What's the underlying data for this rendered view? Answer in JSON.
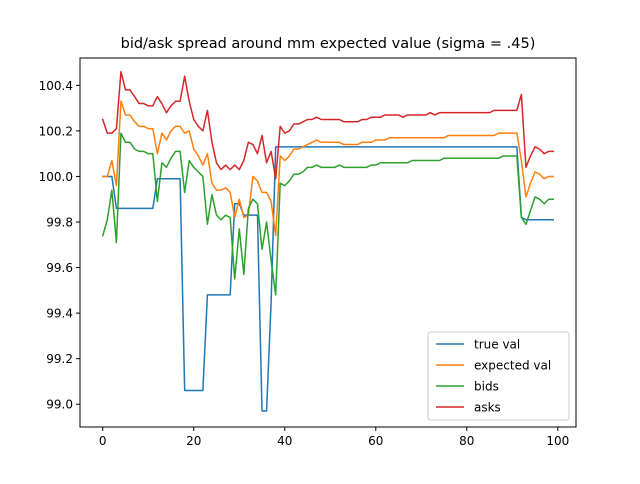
{
  "chart_data": {
    "type": "line",
    "title": "bid/ask spread around mm expected value (sigma = .45)",
    "xlabel": "",
    "ylabel": "",
    "xlim": [
      -5,
      104
    ],
    "ylim": [
      98.9,
      100.52
    ],
    "xticks": [
      0,
      20,
      40,
      60,
      80,
      100
    ],
    "yticks": [
      99.0,
      99.2,
      99.4,
      99.6,
      99.8,
      100.0,
      100.2,
      100.4
    ],
    "xtick_labels": [
      "0",
      "20",
      "40",
      "60",
      "80",
      "100"
    ],
    "ytick_labels": [
      "99.0",
      "99.2",
      "99.4",
      "99.6",
      "99.8",
      "100.0",
      "100.2",
      "100.4"
    ],
    "grid": false,
    "legend_position": "lower-right",
    "series": [
      {
        "name": "true val",
        "color": "#1f77b4",
        "x": [
          0,
          1,
          2,
          3,
          4,
          5,
          6,
          7,
          8,
          9,
          10,
          11,
          12,
          13,
          14,
          15,
          16,
          17,
          18,
          19,
          20,
          21,
          22,
          23,
          24,
          25,
          26,
          27,
          28,
          29,
          30,
          31,
          32,
          33,
          34,
          35,
          36,
          37,
          38,
          39,
          40,
          41,
          42,
          43,
          44,
          45,
          46,
          47,
          48,
          49,
          50,
          51,
          52,
          53,
          54,
          55,
          56,
          57,
          58,
          59,
          60,
          61,
          62,
          63,
          64,
          65,
          66,
          67,
          68,
          69,
          70,
          71,
          72,
          73,
          74,
          75,
          76,
          77,
          78,
          79,
          80,
          81,
          82,
          83,
          84,
          85,
          86,
          87,
          88,
          89,
          90,
          91,
          92,
          93,
          94,
          95,
          96,
          97,
          98,
          99
        ],
        "y": [
          100.0,
          100.0,
          100.0,
          99.86,
          99.86,
          99.86,
          99.86,
          99.86,
          99.86,
          99.86,
          99.86,
          99.86,
          99.99,
          99.99,
          99.99,
          99.99,
          99.99,
          99.99,
          99.06,
          99.06,
          99.06,
          99.06,
          99.06,
          99.48,
          99.48,
          99.48,
          99.48,
          99.48,
          99.48,
          99.88,
          99.88,
          99.83,
          99.83,
          99.83,
          99.83,
          98.97,
          98.97,
          99.45,
          100.13,
          100.13,
          100.13,
          100.13,
          100.13,
          100.13,
          100.13,
          100.13,
          100.13,
          100.13,
          100.13,
          100.13,
          100.13,
          100.13,
          100.13,
          100.13,
          100.13,
          100.13,
          100.13,
          100.13,
          100.13,
          100.13,
          100.13,
          100.13,
          100.13,
          100.13,
          100.13,
          100.13,
          100.13,
          100.13,
          100.13,
          100.13,
          100.13,
          100.13,
          100.13,
          100.13,
          100.13,
          100.13,
          100.13,
          100.13,
          100.13,
          100.13,
          100.13,
          100.13,
          100.13,
          100.13,
          100.13,
          100.13,
          100.13,
          100.13,
          100.13,
          100.13,
          100.13,
          100.13,
          99.82,
          99.81,
          99.81,
          99.81,
          99.81,
          99.81,
          99.81,
          99.81
        ]
      },
      {
        "name": "expected val",
        "color": "#ff7f0e",
        "x": [
          0,
          1,
          2,
          3,
          4,
          5,
          6,
          7,
          8,
          9,
          10,
          11,
          12,
          13,
          14,
          15,
          16,
          17,
          18,
          19,
          20,
          21,
          22,
          23,
          24,
          25,
          26,
          27,
          28,
          29,
          30,
          31,
          32,
          33,
          34,
          35,
          36,
          37,
          38,
          39,
          40,
          41,
          42,
          43,
          44,
          45,
          46,
          47,
          48,
          49,
          50,
          51,
          52,
          53,
          54,
          55,
          56,
          57,
          58,
          59,
          60,
          61,
          62,
          63,
          64,
          65,
          66,
          67,
          68,
          69,
          70,
          71,
          72,
          73,
          74,
          75,
          76,
          77,
          78,
          79,
          80,
          81,
          82,
          83,
          84,
          85,
          86,
          87,
          88,
          89,
          90,
          91,
          92,
          93,
          94,
          95,
          96,
          97,
          98,
          99
        ],
        "y": [
          100.0,
          100.0,
          100.07,
          99.96,
          100.33,
          100.27,
          100.27,
          100.24,
          100.22,
          100.22,
          100.21,
          100.21,
          100.1,
          100.19,
          100.16,
          100.2,
          100.22,
          100.22,
          100.19,
          100.2,
          100.12,
          100.09,
          100.05,
          100.1,
          99.97,
          99.94,
          99.94,
          99.95,
          99.93,
          99.82,
          99.9,
          99.82,
          99.83,
          100.0,
          99.98,
          99.93,
          99.93,
          99.89,
          99.74,
          100.09,
          100.07,
          100.09,
          100.12,
          100.12,
          100.13,
          100.14,
          100.15,
          100.16,
          100.15,
          100.15,
          100.15,
          100.15,
          100.15,
          100.14,
          100.14,
          100.14,
          100.14,
          100.15,
          100.15,
          100.15,
          100.16,
          100.16,
          100.16,
          100.17,
          100.17,
          100.17,
          100.17,
          100.17,
          100.17,
          100.17,
          100.17,
          100.17,
          100.17,
          100.17,
          100.17,
          100.17,
          100.18,
          100.18,
          100.18,
          100.18,
          100.18,
          100.18,
          100.18,
          100.18,
          100.18,
          100.18,
          100.18,
          100.19,
          100.19,
          100.19,
          100.19,
          100.19,
          100.07,
          99.91,
          99.97,
          100.02,
          100.01,
          99.99,
          100.0,
          100.0
        ]
      },
      {
        "name": "bids",
        "color": "#2ca02c",
        "x": [
          0,
          1,
          2,
          3,
          4,
          5,
          6,
          7,
          8,
          9,
          10,
          11,
          12,
          13,
          14,
          15,
          16,
          17,
          18,
          19,
          20,
          21,
          22,
          23,
          24,
          25,
          26,
          27,
          28,
          29,
          30,
          31,
          32,
          33,
          34,
          35,
          36,
          37,
          38,
          39,
          40,
          41,
          42,
          43,
          44,
          45,
          46,
          47,
          48,
          49,
          50,
          51,
          52,
          53,
          54,
          55,
          56,
          57,
          58,
          59,
          60,
          61,
          62,
          63,
          64,
          65,
          66,
          67,
          68,
          69,
          70,
          71,
          72,
          73,
          74,
          75,
          76,
          77,
          78,
          79,
          80,
          81,
          82,
          83,
          84,
          85,
          86,
          87,
          88,
          89,
          90,
          91,
          92,
          93,
          94,
          95,
          96,
          97,
          98,
          99
        ],
        "y": [
          99.74,
          99.81,
          99.94,
          99.71,
          100.19,
          100.15,
          100.15,
          100.12,
          100.11,
          100.11,
          100.1,
          100.1,
          99.89,
          100.06,
          100.04,
          100.08,
          100.11,
          100.11,
          99.93,
          100.07,
          100.04,
          100.02,
          100.0,
          99.79,
          99.92,
          99.83,
          99.81,
          99.83,
          99.82,
          99.55,
          99.77,
          99.57,
          99.86,
          99.9,
          99.88,
          99.68,
          99.8,
          99.63,
          99.48,
          99.97,
          99.96,
          99.98,
          100.01,
          100.01,
          100.02,
          100.04,
          100.04,
          100.05,
          100.04,
          100.04,
          100.04,
          100.04,
          100.05,
          100.04,
          100.04,
          100.04,
          100.04,
          100.04,
          100.04,
          100.05,
          100.05,
          100.06,
          100.06,
          100.06,
          100.06,
          100.06,
          100.06,
          100.06,
          100.07,
          100.07,
          100.07,
          100.07,
          100.07,
          100.07,
          100.07,
          100.08,
          100.08,
          100.08,
          100.08,
          100.08,
          100.08,
          100.08,
          100.08,
          100.08,
          100.08,
          100.08,
          100.08,
          100.08,
          100.09,
          100.09,
          100.09,
          100.09,
          99.82,
          99.79,
          99.85,
          99.91,
          99.9,
          99.88,
          99.9,
          99.9
        ]
      },
      {
        "name": "asks",
        "color": "#d62728",
        "x": [
          0,
          1,
          2,
          3,
          4,
          5,
          6,
          7,
          8,
          9,
          10,
          11,
          12,
          13,
          14,
          15,
          16,
          17,
          18,
          19,
          20,
          21,
          22,
          23,
          24,
          25,
          26,
          27,
          28,
          29,
          30,
          31,
          32,
          33,
          34,
          35,
          36,
          37,
          38,
          39,
          40,
          41,
          42,
          43,
          44,
          45,
          46,
          47,
          48,
          49,
          50,
          51,
          52,
          53,
          54,
          55,
          56,
          57,
          58,
          59,
          60,
          61,
          62,
          63,
          64,
          65,
          66,
          67,
          68,
          69,
          70,
          71,
          72,
          73,
          74,
          75,
          76,
          77,
          78,
          79,
          80,
          81,
          82,
          83,
          84,
          85,
          86,
          87,
          88,
          89,
          90,
          91,
          92,
          93,
          94,
          95,
          96,
          97,
          98,
          99
        ],
        "y": [
          100.25,
          100.19,
          100.19,
          100.21,
          100.46,
          100.38,
          100.38,
          100.35,
          100.32,
          100.32,
          100.31,
          100.31,
          100.35,
          100.32,
          100.28,
          100.31,
          100.33,
          100.33,
          100.44,
          100.33,
          100.25,
          100.22,
          100.2,
          100.29,
          100.15,
          100.06,
          100.03,
          100.05,
          100.03,
          100.05,
          100.03,
          100.07,
          100.15,
          100.14,
          100.1,
          100.18,
          100.06,
          100.11,
          99.99,
          100.22,
          100.19,
          100.2,
          100.23,
          100.23,
          100.24,
          100.25,
          100.25,
          100.26,
          100.25,
          100.25,
          100.25,
          100.25,
          100.25,
          100.24,
          100.24,
          100.24,
          100.24,
          100.25,
          100.25,
          100.26,
          100.26,
          100.26,
          100.27,
          100.27,
          100.27,
          100.27,
          100.26,
          100.27,
          100.27,
          100.27,
          100.27,
          100.27,
          100.28,
          100.27,
          100.28,
          100.28,
          100.28,
          100.28,
          100.28,
          100.28,
          100.28,
          100.28,
          100.28,
          100.28,
          100.28,
          100.28,
          100.29,
          100.29,
          100.29,
          100.29,
          100.29,
          100.29,
          100.36,
          100.04,
          100.09,
          100.13,
          100.12,
          100.1,
          100.11,
          100.11
        ]
      }
    ]
  }
}
